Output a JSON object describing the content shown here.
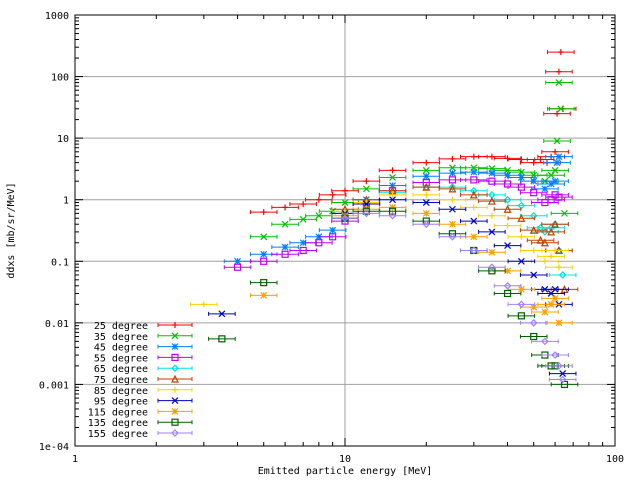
{
  "chart_data": {
    "type": "scatter",
    "title": "",
    "xlabel": "Emitted particle energy [MeV]",
    "ylabel": "ddxs [mb/sr/MeV]",
    "xscale": "log",
    "yscale": "log",
    "xlim": [
      1,
      100
    ],
    "ylim": [
      0.0001,
      1000
    ],
    "x_ticks": [
      {
        "value": 1,
        "label": "1"
      },
      {
        "value": 10,
        "label": "10"
      },
      {
        "value": 100,
        "label": "100"
      }
    ],
    "y_ticks": [
      {
        "value": 0.0001,
        "label": "1e-04"
      },
      {
        "value": 0.001,
        "label": "0.001"
      },
      {
        "value": 0.01,
        "label": "0.01"
      },
      {
        "value": 0.1,
        "label": "0.1"
      },
      {
        "value": 1,
        "label": "1"
      },
      {
        "value": 10,
        "label": "10"
      },
      {
        "value": 100,
        "label": "100"
      },
      {
        "value": 1000,
        "label": "1000"
      }
    ],
    "grid": true,
    "legend_position": "bottom-left",
    "error_bars": "horizontal bin-width bars",
    "series": [
      {
        "name": "25 degree",
        "color": "#ff0000",
        "marker": "plus",
        "x": [
          5,
          6,
          7,
          8,
          9,
          10,
          12,
          15,
          20,
          25,
          30,
          35,
          40,
          45,
          50,
          53,
          56,
          58,
          60,
          61,
          62,
          63,
          64
        ],
        "y": [
          0.63,
          0.75,
          0.85,
          1.0,
          1.2,
          1.4,
          2.0,
          3.0,
          4.0,
          4.6,
          5.0,
          5.0,
          4.7,
          4.5,
          4.0,
          4.5,
          4.0,
          5.0,
          6.0,
          25,
          120,
          250,
          30
        ]
      },
      {
        "name": "35 degree",
        "color": "#00c000",
        "marker": "x",
        "x": [
          5,
          6,
          7,
          8,
          9,
          10,
          12,
          15,
          20,
          25,
          30,
          35,
          40,
          45,
          50,
          55,
          58,
          60,
          61,
          62,
          63,
          65
        ],
        "y": [
          0.25,
          0.4,
          0.48,
          0.55,
          0.65,
          0.9,
          1.5,
          2.3,
          3.0,
          3.3,
          3.3,
          3.2,
          3.0,
          2.8,
          2.5,
          2.0,
          2.5,
          3.0,
          9,
          80,
          30,
          0.6
        ]
      },
      {
        "name": "45 degree",
        "color": "#0080ff",
        "marker": "star",
        "x": [
          4,
          5,
          6,
          7,
          8,
          9,
          10,
          12,
          15,
          20,
          25,
          30,
          35,
          40,
          45,
          50,
          55,
          58,
          60,
          61,
          62
        ],
        "y": [
          0.1,
          0.13,
          0.17,
          0.2,
          0.25,
          0.32,
          0.5,
          1.0,
          1.7,
          2.4,
          2.7,
          2.8,
          2.7,
          2.5,
          2.3,
          2.0,
          1.5,
          1.8,
          2.0,
          4.0,
          5.0
        ]
      },
      {
        "name": "55 degree",
        "color": "#c000ff",
        "marker": "square",
        "x": [
          4,
          5,
          6,
          7,
          8,
          9,
          10,
          12,
          15,
          20,
          25,
          30,
          35,
          40,
          45,
          50,
          55,
          58,
          60,
          62
        ],
        "y": [
          0.08,
          0.1,
          0.13,
          0.15,
          0.2,
          0.25,
          0.45,
          0.85,
          1.4,
          1.9,
          2.1,
          2.1,
          2.0,
          1.8,
          1.6,
          1.3,
          0.9,
          1.0,
          1.2,
          1.1
        ]
      },
      {
        "name": "65 degree",
        "color": "#00e0e0",
        "marker": "diamond",
        "x": [
          10,
          12,
          15,
          20,
          25,
          30,
          35,
          40,
          45,
          50,
          53,
          55,
          58,
          60,
          62,
          64
        ],
        "y": [
          0.6,
          0.9,
          1.3,
          1.6,
          1.6,
          1.4,
          1.2,
          1.0,
          0.8,
          0.55,
          0.35,
          0.3,
          0.35,
          0.4,
          0.15,
          0.06
        ]
      },
      {
        "name": "75 degree",
        "color": "#c04000",
        "marker": "triangle",
        "x": [
          10,
          12,
          15,
          20,
          25,
          30,
          35,
          40,
          45,
          50,
          53,
          55,
          58,
          60,
          62,
          65
        ],
        "y": [
          0.7,
          1.0,
          1.4,
          1.6,
          1.5,
          1.2,
          0.95,
          0.7,
          0.5,
          0.32,
          0.22,
          0.2,
          0.3,
          0.4,
          0.15,
          0.035
        ]
      },
      {
        "name": "85 degree",
        "color": "#ffd000",
        "marker": "plus",
        "x": [
          3,
          10,
          12,
          15,
          20,
          25,
          30,
          35,
          40,
          45,
          50,
          55,
          58,
          60,
          62
        ],
        "y": [
          0.02,
          0.65,
          0.9,
          1.2,
          1.2,
          1.0,
          0.75,
          0.55,
          0.38,
          0.25,
          0.15,
          0.1,
          0.12,
          0.15,
          0.08
        ]
      },
      {
        "name": "95 degree",
        "color": "#0000c0",
        "marker": "x",
        "x": [
          3.5,
          10,
          12,
          15,
          20,
          25,
          30,
          35,
          40,
          45,
          50,
          55,
          58,
          60,
          62,
          64
        ],
        "y": [
          0.014,
          0.6,
          0.85,
          1.0,
          0.9,
          0.7,
          0.45,
          0.3,
          0.18,
          0.1,
          0.06,
          0.035,
          0.03,
          0.035,
          0.02,
          0.0015
        ]
      },
      {
        "name": "115 degree",
        "color": "#ffa000",
        "marker": "star",
        "x": [
          5,
          10,
          12,
          15,
          20,
          25,
          30,
          35,
          40,
          45,
          50,
          55,
          58,
          60,
          62
        ],
        "y": [
          0.028,
          0.55,
          0.7,
          0.75,
          0.6,
          0.4,
          0.25,
          0.14,
          0.07,
          0.035,
          0.018,
          0.015,
          0.02,
          0.025,
          0.01
        ]
      },
      {
        "name": "135 degree",
        "color": "#006000",
        "marker": "square",
        "x": [
          3.5,
          5,
          10,
          12,
          15,
          20,
          25,
          30,
          35,
          40,
          45,
          50,
          55,
          58,
          60,
          65
        ],
        "y": [
          0.0055,
          0.045,
          0.5,
          0.65,
          0.65,
          0.45,
          0.28,
          0.15,
          0.07,
          0.03,
          0.013,
          0.006,
          0.003,
          0.002,
          0.002,
          0.001
        ]
      },
      {
        "name": "155 degree",
        "color": "#a080ff",
        "marker": "diamond",
        "x": [
          10,
          12,
          15,
          20,
          25,
          30,
          35,
          40,
          45,
          50,
          55,
          60,
          62,
          64
        ],
        "y": [
          0.5,
          0.6,
          0.55,
          0.4,
          0.25,
          0.15,
          0.08,
          0.04,
          0.02,
          0.01,
          0.005,
          0.003,
          0.002,
          0.0012
        ]
      }
    ]
  }
}
